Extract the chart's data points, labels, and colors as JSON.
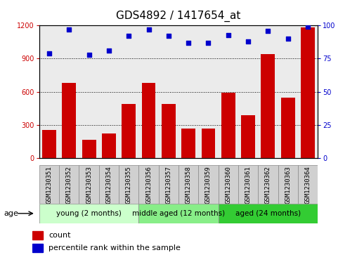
{
  "title": "GDS4892 / 1417654_at",
  "samples": [
    "GSM1230351",
    "GSM1230352",
    "GSM1230353",
    "GSM1230354",
    "GSM1230355",
    "GSM1230356",
    "GSM1230357",
    "GSM1230358",
    "GSM1230359",
    "GSM1230360",
    "GSM1230361",
    "GSM1230362",
    "GSM1230363",
    "GSM1230364"
  ],
  "counts": [
    255,
    680,
    165,
    220,
    490,
    680,
    490,
    265,
    265,
    590,
    390,
    940,
    550,
    1180
  ],
  "percentile_ranks": [
    79,
    97,
    78,
    81,
    92,
    97,
    92,
    87,
    87,
    93,
    88,
    96,
    90,
    99
  ],
  "ylim_left": [
    0,
    1200
  ],
  "ylim_right": [
    0,
    100
  ],
  "yticks_left": [
    0,
    300,
    600,
    900,
    1200
  ],
  "yticks_right": [
    0,
    25,
    50,
    75,
    100
  ],
  "bar_color": "#cc0000",
  "scatter_color": "#0000cc",
  "groups": [
    {
      "label": "young (2 months)",
      "start": 0,
      "end": 5,
      "color": "#ccffcc"
    },
    {
      "label": "middle aged (12 months)",
      "start": 5,
      "end": 9,
      "color": "#88ee88"
    },
    {
      "label": "aged (24 months)",
      "start": 9,
      "end": 14,
      "color": "#33cc33"
    }
  ],
  "age_label": "age",
  "legend_count_label": "count",
  "legend_pct_label": "percentile rank within the sample",
  "title_fontsize": 11,
  "tick_fontsize": 6.5,
  "label_fontsize": 8,
  "group_fontsize": 7.5
}
